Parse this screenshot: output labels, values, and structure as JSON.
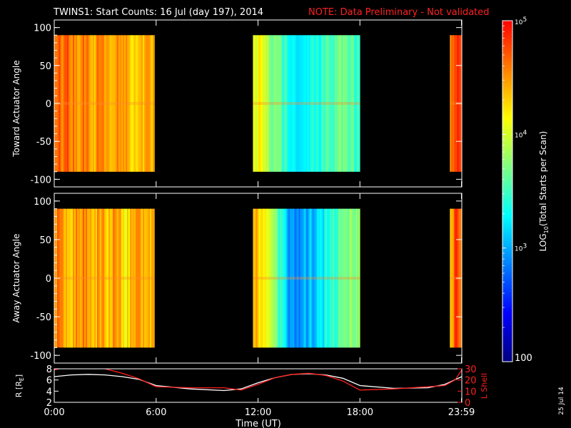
{
  "title": "TWINS1: Start Counts: 16 Jul (day 197), 2014",
  "note": "NOTE: Data Preliminary - Not validated",
  "stamp": "25 Jul 14",
  "xlabel": "Time (UT)",
  "colorbar": {
    "label_prefix": "LOG",
    "label_sub": "10",
    "label_suffix": "(Total Starts per Scan)",
    "scale": "log",
    "range": [
      100,
      100000
    ],
    "tick_labels": [
      {
        "value": 100000,
        "base": "10",
        "exp": "5"
      },
      {
        "value": 10000,
        "base": "10",
        "exp": "4"
      },
      {
        "value": 1000,
        "base": "10",
        "exp": "3"
      },
      {
        "value": 100,
        "base": "100",
        "exp": ""
      }
    ],
    "colors": [
      "#000080",
      "#0000ff",
      "#0080ff",
      "#00ffff",
      "#80ff80",
      "#ffff00",
      "#ff8000",
      "#ff0000"
    ]
  },
  "chart_data": [
    {
      "type": "heatmap",
      "ylabel": "Toward Actuator Angle",
      "ylim": [
        -110,
        110
      ],
      "yticks": [
        "100",
        "50",
        "0",
        "-50",
        "-100"
      ],
      "ytick_values": [
        100,
        50,
        0,
        -50,
        -100
      ],
      "xlim": [
        0,
        24
      ],
      "data_angle_range": [
        -90,
        90
      ],
      "segments": [
        {
          "start": 0,
          "end": 5.9,
          "profile": [
            [
              0.0,
              4.7
            ],
            [
              0.3,
              4.6
            ],
            [
              0.8,
              4.7
            ],
            [
              1.3,
              4.5
            ],
            [
              1.8,
              4.6
            ],
            [
              2.2,
              4.3
            ],
            [
              2.6,
              4.6
            ],
            [
              3.1,
              4.4
            ],
            [
              3.6,
              4.5
            ],
            [
              4.2,
              4.4
            ],
            [
              4.8,
              4.3
            ],
            [
              5.3,
              4.4
            ],
            [
              5.9,
              4.4
            ]
          ]
        },
        {
          "start": 11.7,
          "end": 18.0,
          "profile": [
            [
              11.7,
              4.1
            ],
            [
              12.2,
              4.1
            ],
            [
              12.7,
              3.8
            ],
            [
              13.2,
              3.6
            ],
            [
              13.7,
              3.4
            ],
            [
              14.2,
              3.3
            ],
            [
              14.7,
              3.3
            ],
            [
              15.2,
              3.4
            ],
            [
              15.7,
              3.4
            ],
            [
              16.2,
              3.5
            ],
            [
              16.7,
              3.7
            ],
            [
              17.2,
              3.6
            ],
            [
              17.6,
              3.5
            ],
            [
              18.0,
              3.6
            ]
          ]
        },
        {
          "start": 23.3,
          "end": 24.0,
          "profile": [
            [
              23.3,
              4.6
            ],
            [
              23.6,
              4.8
            ],
            [
              24.0,
              4.7
            ]
          ]
        }
      ]
    },
    {
      "type": "heatmap",
      "ylabel": "Away Actuator Angle",
      "ylim": [
        -110,
        110
      ],
      "yticks": [
        "100",
        "50",
        "0",
        "-50",
        "-100"
      ],
      "ytick_values": [
        100,
        50,
        0,
        -50,
        -100
      ],
      "xlim": [
        0,
        24
      ],
      "data_angle_range": [
        -90,
        90
      ],
      "segments": [
        {
          "start": 0,
          "end": 5.9,
          "profile": [
            [
              0.0,
              4.5
            ],
            [
              0.3,
              4.6
            ],
            [
              0.8,
              4.3
            ],
            [
              1.3,
              4.5
            ],
            [
              1.8,
              4.6
            ],
            [
              2.2,
              4.3
            ],
            [
              2.6,
              4.5
            ],
            [
              3.1,
              4.3
            ],
            [
              3.6,
              4.6
            ],
            [
              4.2,
              4.2
            ],
            [
              4.8,
              4.5
            ],
            [
              5.3,
              4.3
            ],
            [
              5.9,
              4.4
            ]
          ]
        },
        {
          "start": 11.7,
          "end": 18.0,
          "profile": [
            [
              11.7,
              4.4
            ],
            [
              12.2,
              4.3
            ],
            [
              12.7,
              3.9
            ],
            [
              13.2,
              3.5
            ],
            [
              13.7,
              3.0
            ],
            [
              14.2,
              2.9
            ],
            [
              14.7,
              3.0
            ],
            [
              15.2,
              3.1
            ],
            [
              15.7,
              3.2
            ],
            [
              16.2,
              3.4
            ],
            [
              16.7,
              3.6
            ],
            [
              17.2,
              3.7
            ],
            [
              17.6,
              3.8
            ],
            [
              18.0,
              3.8
            ]
          ]
        },
        {
          "start": 23.3,
          "end": 24.0,
          "profile": [
            [
              23.3,
              4.3
            ],
            [
              23.6,
              4.8
            ],
            [
              24.0,
              4.4
            ]
          ]
        }
      ]
    },
    {
      "type": "line",
      "ylabel_left": "R [R",
      "ylabel_left_sub": "E",
      "ylabel_left_tail": "]",
      "ylabel_right": "L Shell",
      "ylim_left": [
        2,
        8
      ],
      "ylim_right": [
        0,
        30
      ],
      "yticks_left": [
        "2",
        "4",
        "6",
        "8"
      ],
      "ytick_left_values": [
        2,
        4,
        6,
        8
      ],
      "yticks_right": [
        "0",
        "10",
        "20",
        "30"
      ],
      "ytick_right_values": [
        0,
        10,
        20,
        30
      ],
      "xlim": [
        0,
        24
      ],
      "xticks": [
        "0:00",
        "6:00",
        "12:00",
        "18:00",
        "23:59"
      ],
      "xtick_values": [
        0,
        6,
        12,
        18,
        23.98
      ],
      "series": [
        {
          "color": "#ffffff",
          "axis": "left",
          "x": [
            0,
            1,
            2,
            3,
            4,
            5,
            6,
            8,
            10,
            11,
            12,
            13,
            14,
            15,
            16,
            17,
            18,
            20,
            22,
            23,
            24
          ],
          "y": [
            6.6,
            6.9,
            7.0,
            6.9,
            6.6,
            6.1,
            5.0,
            4.4,
            4.1,
            4.4,
            5.5,
            6.4,
            7.0,
            7.1,
            6.9,
            6.3,
            5.0,
            4.5,
            4.6,
            5.2,
            6.6
          ]
        },
        {
          "color": "#ff2020",
          "axis": "right",
          "x": [
            0,
            0.3,
            1,
            2,
            3,
            4,
            5,
            6,
            8,
            10,
            11,
            12,
            13,
            14,
            15,
            16,
            17,
            18,
            20,
            22,
            23,
            23.6,
            24
          ],
          "y": [
            29,
            30,
            31,
            31,
            30,
            26,
            21,
            14,
            13,
            13,
            11,
            16,
            22,
            25,
            26,
            24,
            19,
            11,
            12,
            14,
            15,
            20,
            29
          ]
        }
      ]
    }
  ]
}
